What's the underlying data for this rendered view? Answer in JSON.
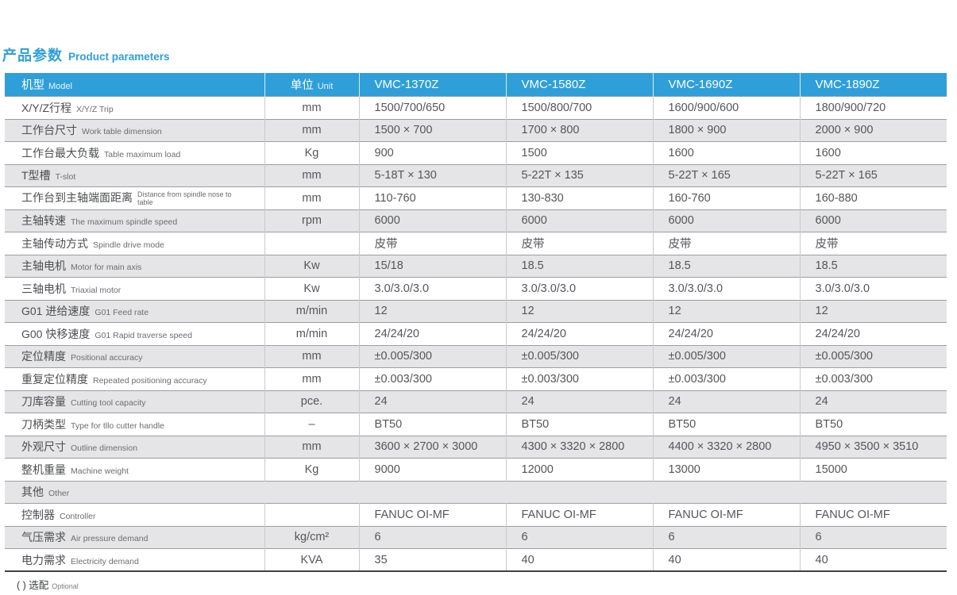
{
  "title": {
    "zh": "产品参数",
    "en": "Product parameters"
  },
  "colors": {
    "accent_blue": "#2F9FDA",
    "stripe_gray": "#E5E5E7",
    "row_line": "#9D9EA1",
    "col_line": "#C9CACB",
    "bottom_line": "#414143",
    "text_dark": "#4C4E50",
    "text_sub": "#6B6D70"
  },
  "table": {
    "header": {
      "model_zh": "机型",
      "model_en": "Model",
      "unit_zh": "单位",
      "unit_en": "Unit",
      "models": [
        "VMC-1370Z",
        "VMC-1580Z",
        "VMC-1690Z",
        "VMC-1890Z"
      ]
    },
    "rows": [
      {
        "zh": "X/Y/Z行程",
        "en": "X/Y/Z Trip",
        "unit": "mm",
        "values": [
          "1500/700/650",
          "1500/800/700",
          "1600/900/600",
          "1800/900/720"
        ]
      },
      {
        "zh": "工作台尺寸",
        "en": "Work table dimension",
        "unit": "mm",
        "values": [
          "1500 × 700",
          "1700 × 800",
          "1800 × 900",
          "2000 × 900"
        ]
      },
      {
        "zh": "工作台最大负载",
        "en": "Table maximum load",
        "unit": "Kg",
        "values": [
          "900",
          "1500",
          "1600",
          "1600"
        ]
      },
      {
        "zh": "T型槽",
        "en": "T-slot",
        "unit": "mm",
        "values": [
          "5-18T × 130",
          "5-22T × 135",
          "5-22T × 165",
          "5-22T × 165"
        ]
      },
      {
        "zh": "工作台到主轴端面距离",
        "en": "Distance from spindle nose to table",
        "wrap_en": true,
        "unit": "mm",
        "values": [
          "110-760",
          "130-830",
          "160-760",
          "160-880"
        ]
      },
      {
        "zh": "主轴转速",
        "en": "The maximum spindle speed",
        "unit": "rpm",
        "values": [
          "6000",
          "6000",
          "6000",
          "6000"
        ]
      },
      {
        "zh": "主轴传动方式",
        "en": "Spindle drive mode",
        "unit": "",
        "values": [
          "皮带",
          "皮带",
          "皮带",
          "皮带"
        ]
      },
      {
        "zh": "主轴电机",
        "en": "Motor for main axis",
        "unit": "Kw",
        "values": [
          "15/18",
          "18.5",
          "18.5",
          "18.5"
        ]
      },
      {
        "zh": "三轴电机",
        "en": "Triaxial motor",
        "unit": "Kw",
        "values": [
          "3.0/3.0/3.0",
          "3.0/3.0/3.0",
          "3.0/3.0/3.0",
          "3.0/3.0/3.0"
        ]
      },
      {
        "zh": "G01 进给速度",
        "en": "G01 Feed rate",
        "unit": "m/min",
        "values": [
          "12",
          "12",
          "12",
          "12"
        ]
      },
      {
        "zh": "G00 快移速度",
        "en": "G01 Rapid traverse speed",
        "unit": "m/min",
        "values": [
          "24/24/20",
          "24/24/20",
          "24/24/20",
          "24/24/20"
        ]
      },
      {
        "zh": "定位精度",
        "en": "Positional accuracy",
        "unit": "mm",
        "values": [
          "±0.005/300",
          "±0.005/300",
          "±0.005/300",
          "±0.005/300"
        ]
      },
      {
        "zh": "重复定位精度",
        "en": "Repeated positioning accuracy",
        "unit": "mm",
        "values": [
          "±0.003/300",
          "±0.003/300",
          "±0.003/300",
          "±0.003/300"
        ]
      },
      {
        "zh": "刀库容量",
        "en": "Cutting tool capacity",
        "unit": "pce.",
        "values": [
          "24",
          "24",
          "24",
          "24"
        ]
      },
      {
        "zh": "刀柄类型",
        "en": "Type for tllo cutter handle",
        "unit": "–",
        "values": [
          "BT50",
          "BT50",
          "BT50",
          "BT50"
        ]
      },
      {
        "zh": "外观尺寸",
        "en": "Outline dimension",
        "unit": "mm",
        "values": [
          "3600 × 2700 × 3000",
          "4300 × 3320 × 2800",
          "4400 × 3320 × 2800",
          "4950 × 3500 × 3510"
        ]
      },
      {
        "zh": "整机重量",
        "en": "Machine weight",
        "unit": "Kg",
        "values": [
          "9000",
          "12000",
          "13000",
          "15000"
        ]
      },
      {
        "section": true,
        "zh": "其他",
        "en": "Other"
      },
      {
        "zh": "控制器",
        "en": "Controller",
        "unit": "",
        "values": [
          "FANUC OI-MF",
          "FANUC OI-MF",
          "FANUC OI-MF",
          "FANUC OI-MF"
        ]
      },
      {
        "zh": "气压需求",
        "en": "Air pressure demand",
        "unit": "kg/cm²",
        "values": [
          "6",
          "6",
          "6",
          "6"
        ]
      },
      {
        "zh": "电力需求",
        "en": "Electricity demand",
        "unit": "KVA",
        "values": [
          "35",
          "40",
          "40",
          "40"
        ]
      }
    ]
  },
  "footer": {
    "zh": "( ) 选配",
    "en": "Optional"
  }
}
